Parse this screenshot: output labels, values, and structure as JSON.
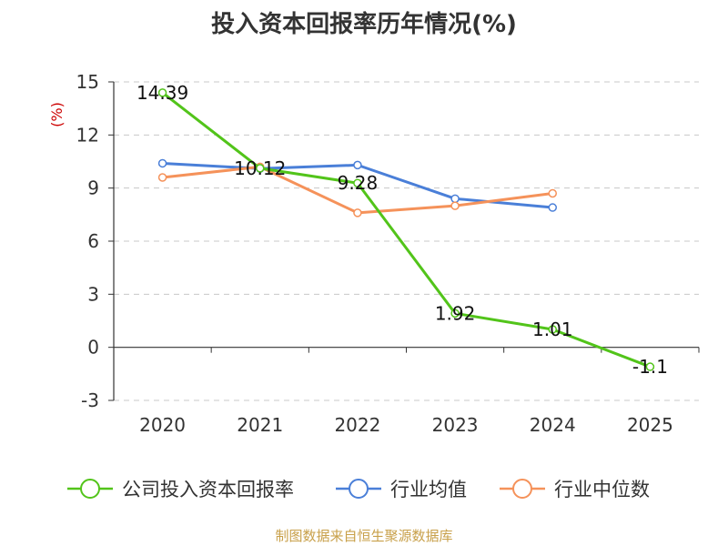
{
  "chart_data": {
    "type": "line",
    "title": "投入资本回报率历年情况(%)",
    "ylabel": "(%)",
    "categories": [
      "2020",
      "2021",
      "2022",
      "2023",
      "2024",
      "2025"
    ],
    "ylim": [
      -3,
      15
    ],
    "yticks": [
      -3,
      0,
      3,
      6,
      9,
      12,
      15
    ],
    "grid": true,
    "legend_position": "bottom",
    "series": [
      {
        "name": "公司投入资本回报率",
        "color": "#52c41a",
        "values": [
          14.39,
          10.12,
          9.28,
          1.92,
          1.01,
          -1.1
        ],
        "labels": [
          "14.39",
          "10.12",
          "9.28",
          "1.92",
          "1.01",
          "-1.1"
        ]
      },
      {
        "name": "行业均值",
        "color": "#4a7fd8",
        "values": [
          10.4,
          10.1,
          10.3,
          8.4,
          7.9,
          null
        ]
      },
      {
        "name": "行业中位数",
        "color": "#f5925a",
        "values": [
          9.6,
          10.2,
          7.6,
          8.0,
          8.7,
          null
        ]
      }
    ]
  },
  "source": "制图数据来自恒生聚源数据库"
}
